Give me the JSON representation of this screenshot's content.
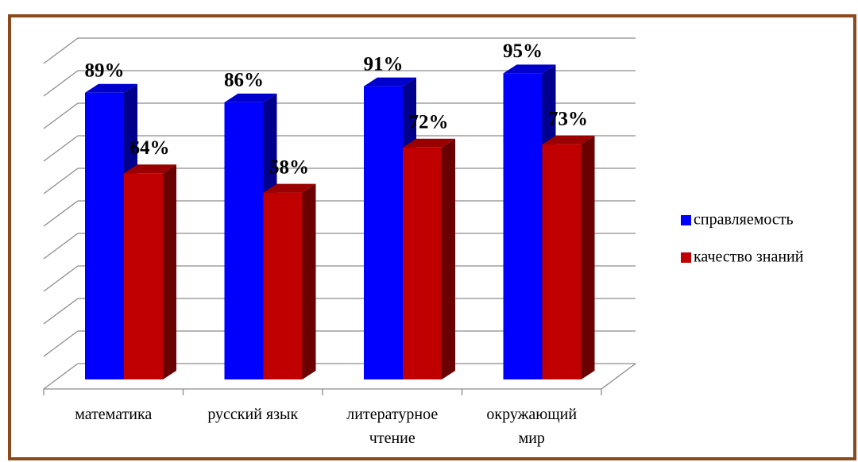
{
  "chart_data": {
    "type": "bar3d",
    "categories": [
      "математика",
      "русский язык",
      "литературное чтение",
      "окружающий мир"
    ],
    "series": [
      {
        "name": "справляемость",
        "color": "#0000ff",
        "values": [
          89,
          86,
          91,
          95
        ],
        "value_labels": [
          "89%",
          "86%",
          "91%",
          "95%"
        ]
      },
      {
        "name": "качество знаний",
        "color": "#c00000",
        "values": [
          64,
          58,
          72,
          73
        ],
        "value_labels": [
          "64%",
          "58%",
          "72%",
          "73%"
        ]
      }
    ],
    "ylim": [
      0,
      100
    ],
    "yticks": [
      0,
      10,
      20,
      30,
      40,
      50,
      60,
      70,
      80,
      90,
      100
    ],
    "grid": true,
    "legend": "right"
  }
}
